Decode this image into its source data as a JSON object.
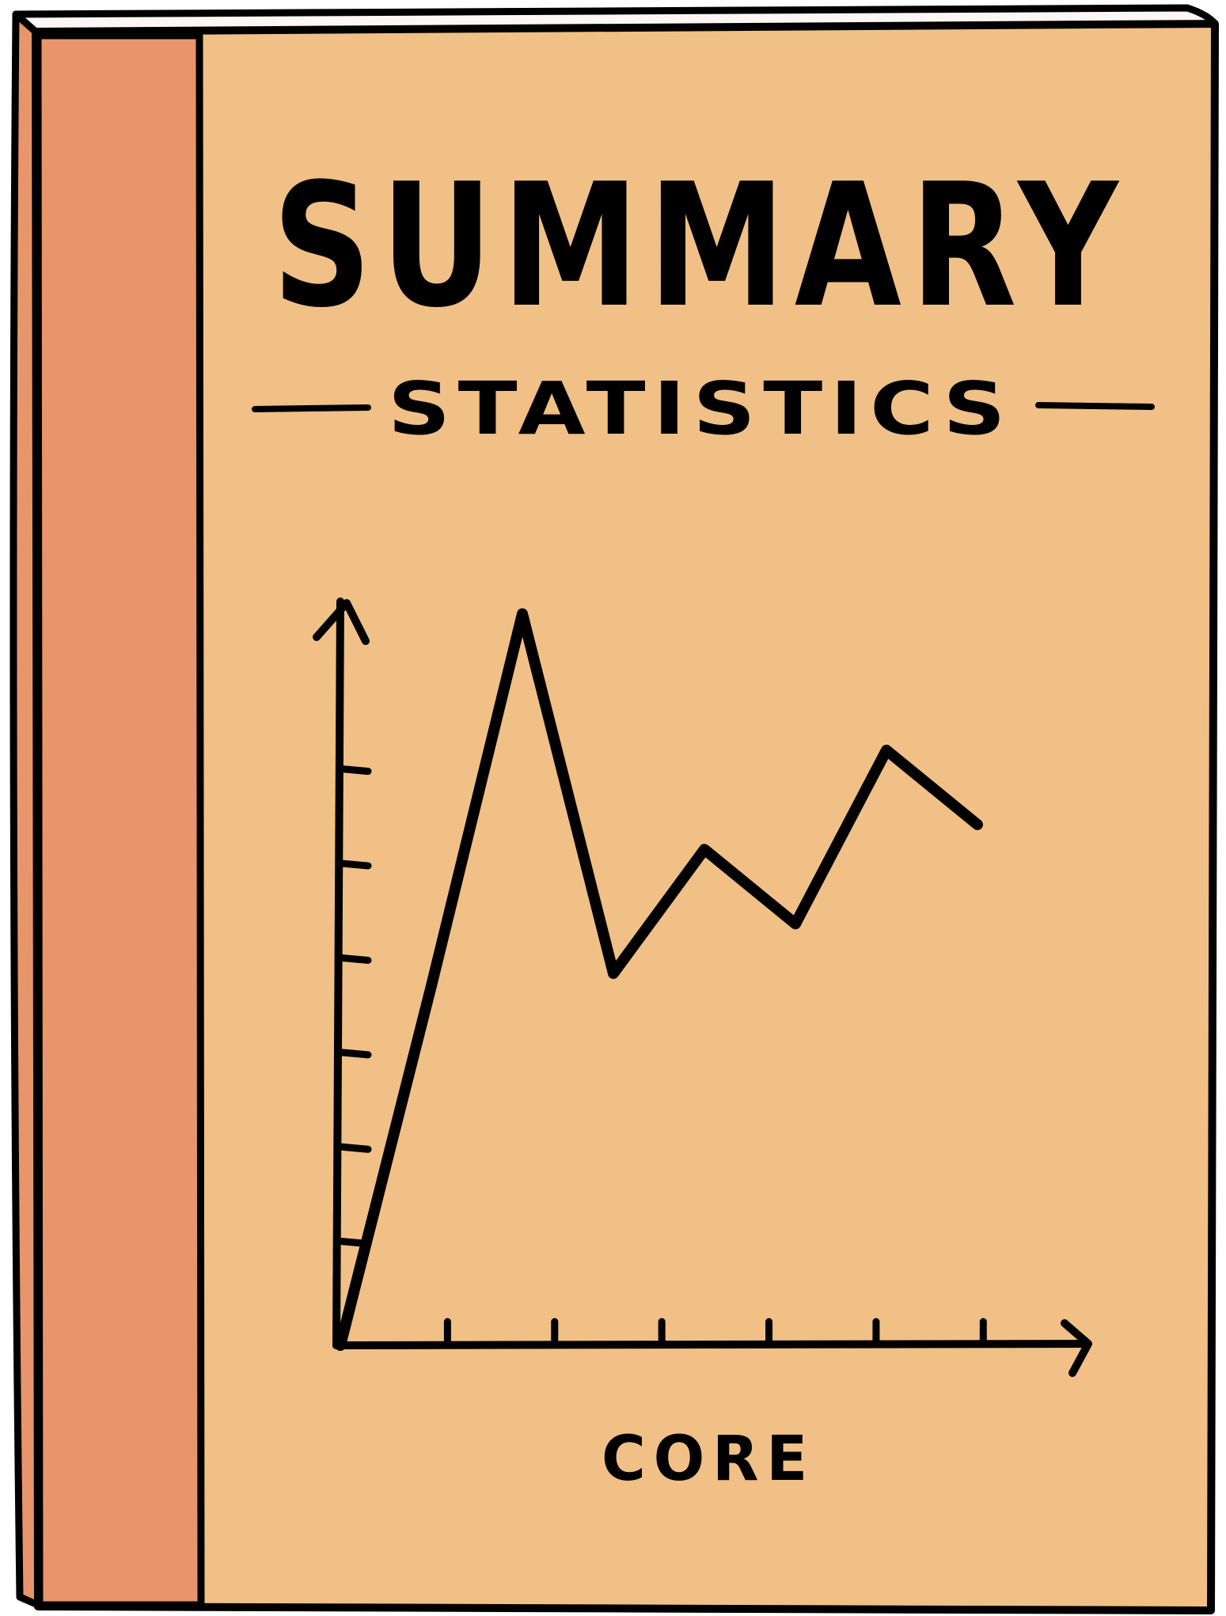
{
  "cover": {
    "title": "SUMMARY",
    "subtitle": "STATISTICS",
    "footer": "CORE"
  },
  "colors": {
    "cover": "#F0C086",
    "spine": "#E8956B",
    "pages": "#FCF7F4",
    "ink": "#000000"
  },
  "chart_data": {
    "type": "line",
    "x": [
      0,
      1,
      2,
      3,
      4,
      5,
      6,
      7
    ],
    "values": [
      0,
      2.9,
      5.9,
      3.0,
      4.0,
      3.4,
      4.8,
      4.2
    ],
    "x_ticks": 6,
    "y_ticks": 6,
    "xlim": [
      0,
      7
    ],
    "ylim": [
      0,
      6
    ],
    "title": "",
    "xlabel": "",
    "ylabel": "",
    "grid": false
  }
}
